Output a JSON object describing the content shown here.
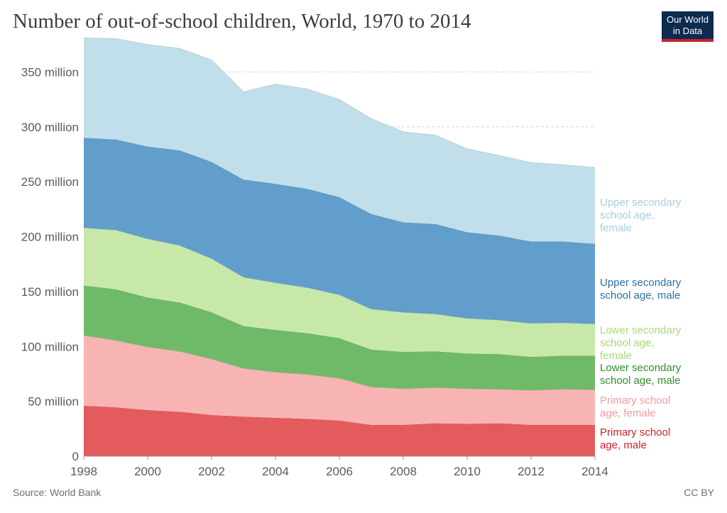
{
  "header": {
    "title": "Number of out-of-school children, World, 1970 to 2014",
    "logo_line1": "Our World",
    "logo_line2": "in Data"
  },
  "footer": {
    "source": "Source: World Bank",
    "license": "CC BY"
  },
  "colors": {
    "primary_male": "#e45b5e",
    "primary_female": "#f8b4b3",
    "lower_male": "#6fba69",
    "lower_female": "#c8e8a9",
    "upper_male": "#619ecb",
    "upper_female": "#c0dfeb",
    "primary_male_label": "#c8222b",
    "primary_female_label": "#f59a9c",
    "lower_male_label": "#2f8f2b",
    "lower_female_label": "#a9d97b",
    "upper_male_label": "#2d6fa6",
    "upper_female_label": "#a6cfe2"
  },
  "chart_data": {
    "type": "area",
    "stacked": true,
    "title": "Number of out-of-school children, World, 1970 to 2014",
    "x": [
      1998,
      1999,
      2000,
      2001,
      2002,
      2003,
      2004,
      2005,
      2006,
      2007,
      2008,
      2009,
      2010,
      2011,
      2012,
      2013,
      2014
    ],
    "xlim": [
      1998,
      2014
    ],
    "ylim": [
      0,
      380000000
    ],
    "x_ticks": [
      "1998",
      "2000",
      "2002",
      "2004",
      "2006",
      "2008",
      "2010",
      "2012",
      "2014"
    ],
    "y_ticks": [
      "0",
      "50 million",
      "100 million",
      "150 million",
      "200 million",
      "250 million",
      "300 million",
      "350 million"
    ],
    "y_tick_values": [
      0,
      50000000,
      100000000,
      150000000,
      200000000,
      250000000,
      300000000,
      350000000
    ],
    "grid": true,
    "legend": "right, inline labels",
    "series": [
      {
        "name": "Primary school age, male",
        "label_lines": [
          "Primary school",
          "age, male"
        ],
        "values": [
          46000000,
          44500000,
          42000000,
          40500000,
          37500000,
          36000000,
          35000000,
          34000000,
          32500000,
          28500000,
          28500000,
          30000000,
          29500000,
          30000000,
          28500000,
          28500000,
          28500000
        ]
      },
      {
        "name": "Primary school age, female",
        "label_lines": [
          "Primary school",
          "age, female"
        ],
        "values": [
          64000000,
          61000000,
          57500000,
          55000000,
          51000000,
          44000000,
          41500000,
          40500000,
          38500000,
          34500000,
          33000000,
          32500000,
          32000000,
          31000000,
          31500000,
          32500000,
          32000000
        ]
      },
      {
        "name": "Lower secondary school age, male",
        "label_lines": [
          "Lower secondary",
          "school age, male"
        ],
        "values": [
          45500000,
          46500000,
          45000000,
          44500000,
          42500000,
          38500000,
          38500000,
          37500000,
          36500000,
          34000000,
          33500000,
          33000000,
          32000000,
          32000000,
          30500000,
          30500000,
          31000000
        ]
      },
      {
        "name": "Lower secondary school age, female",
        "label_lines": [
          "Lower secondary",
          "school age,",
          "female"
        ],
        "values": [
          52500000,
          54000000,
          53500000,
          52000000,
          49000000,
          44500000,
          43000000,
          41500000,
          39500000,
          37000000,
          36000000,
          34000000,
          32000000,
          31000000,
          30500000,
          30000000,
          29000000
        ]
      },
      {
        "name": "Upper secondary school age, male",
        "label_lines": [
          "Upper secondary",
          "school age, male"
        ],
        "values": [
          82000000,
          82500000,
          84000000,
          86500000,
          88000000,
          89000000,
          90000000,
          90000000,
          89000000,
          86500000,
          82000000,
          82000000,
          78500000,
          77000000,
          74500000,
          74000000,
          73000000
        ]
      },
      {
        "name": "Upper secondary school age, female",
        "label_lines": [
          "Upper secondary",
          "school age,",
          "female"
        ],
        "values": [
          91000000,
          92000000,
          93000000,
          93000000,
          93000000,
          80000000,
          91000000,
          91000000,
          89000000,
          87000000,
          82500000,
          81000000,
          76000000,
          73000000,
          72000000,
          70000000,
          69500000
        ]
      }
    ]
  }
}
